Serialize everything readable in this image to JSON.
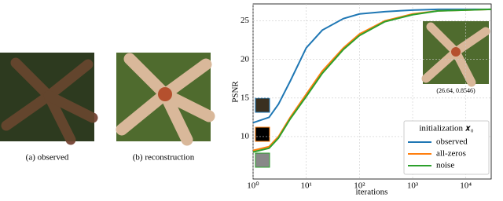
{
  "captions": [
    "(a) observed",
    "(b) reconstruction"
  ],
  "chart_data": {
    "type": "line",
    "xlabel": "iterations",
    "ylabel": "PSNR",
    "inset_label": "(26.64, 0.8546)",
    "legend_title": "initialization 𝒙₀",
    "legend": "lower right",
    "xscale": "log",
    "grid": true,
    "xlim": [
      1,
      30000
    ],
    "ylim": [
      4.5,
      27.2
    ],
    "xticks": [
      {
        "value": 1,
        "label": "10⁰"
      },
      {
        "value": 10,
        "label": "10¹"
      },
      {
        "value": 100,
        "label": "10²"
      },
      {
        "value": 1000,
        "label": "10³"
      },
      {
        "value": 10000,
        "label": "10⁴"
      }
    ],
    "yticks": [
      10,
      15,
      20,
      25
    ],
    "x": [
      1,
      2,
      3,
      5,
      10,
      20,
      50,
      100,
      300,
      1000,
      3000,
      30000
    ],
    "series": [
      {
        "name": "observed",
        "color": "#1f77b4",
        "values": [
          11.8,
          12.5,
          14.2,
          17.2,
          21.5,
          23.8,
          25.3,
          25.9,
          26.2,
          26.4,
          26.5,
          26.5
        ]
      },
      {
        "name": "all-zeros",
        "color": "#ff7f0e",
        "values": [
          8.2,
          8.7,
          10.0,
          12.5,
          15.5,
          18.5,
          21.5,
          23.3,
          25.0,
          25.9,
          26.3,
          26.5
        ]
      },
      {
        "name": "noise",
        "color": "#2ca02c",
        "values": [
          8.0,
          8.5,
          9.8,
          12.3,
          15.2,
          18.2,
          21.3,
          23.1,
          24.9,
          25.8,
          26.3,
          26.5
        ]
      }
    ]
  }
}
